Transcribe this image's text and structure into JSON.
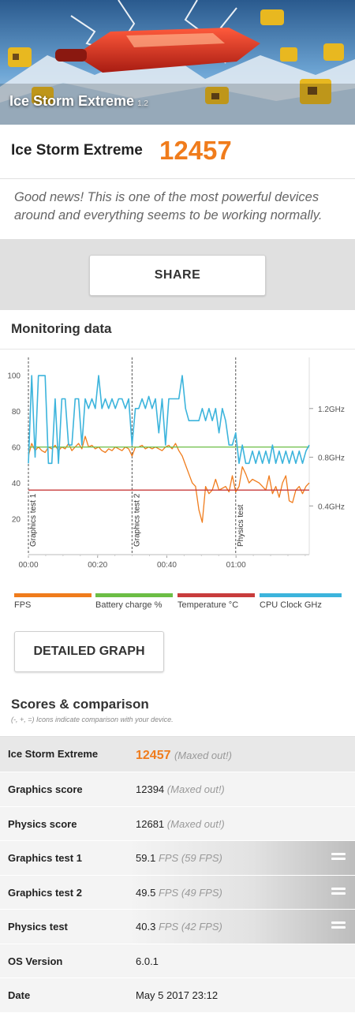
{
  "banner": {
    "title": "Ice Storm Extreme",
    "version": "1.2"
  },
  "score": {
    "name": "Ice Storm Extreme",
    "value": "12457"
  },
  "message": "Good news! This is one of the most powerful devices around and everything seems to be working normally.",
  "share_label": "SHARE",
  "monitoring": {
    "title": "Monitoring data",
    "detailed_label": "DETAILED GRAPH",
    "legend": [
      {
        "label": "FPS",
        "color": "#f07c1c"
      },
      {
        "label": "Battery charge %",
        "color": "#6cbe45"
      },
      {
        "label": "Temperature °C",
        "color": "#c83c3c"
      },
      {
        "label": "CPU Clock GHz",
        "color": "#3cb4dc"
      }
    ]
  },
  "chart_data": {
    "type": "line",
    "x_ticks": [
      "00:00",
      "00:20",
      "00:40",
      "01:00"
    ],
    "x_range": [
      0,
      84
    ],
    "y_left_ticks": [
      20,
      40,
      60,
      80,
      100
    ],
    "y_left_range": [
      0,
      110
    ],
    "y_right_ticks": [
      "0.4GHz",
      "0.8GHz",
      "1.2GHz"
    ],
    "y_right_range": [
      0,
      1.62
    ],
    "section_markers": [
      {
        "label": "Graphics test 1",
        "x": 0
      },
      {
        "label": "Graphics test 2",
        "x": 31
      },
      {
        "label": "Physics test",
        "x": 62
      }
    ],
    "series": [
      {
        "name": "FPS",
        "axis": "left",
        "x": [
          0,
          1,
          2,
          3,
          4,
          5,
          6,
          7,
          8,
          9,
          10,
          11,
          12,
          13,
          14,
          15,
          16,
          17,
          18,
          19,
          20,
          21,
          22,
          23,
          24,
          25,
          26,
          27,
          28,
          29,
          30,
          31,
          32,
          33,
          34,
          35,
          36,
          37,
          38,
          39,
          40,
          41,
          42,
          43,
          44,
          45,
          46,
          47,
          48,
          49,
          50,
          51,
          52,
          53,
          54,
          55,
          56,
          57,
          58,
          59,
          60,
          61,
          62,
          63,
          64,
          65,
          66,
          67,
          68,
          69,
          70,
          71,
          72,
          73,
          74,
          75,
          76,
          77,
          78,
          79,
          80,
          81,
          82,
          83,
          84
        ],
        "y": [
          55,
          62,
          58,
          60,
          58,
          57,
          60,
          59,
          61,
          58,
          60,
          59,
          62,
          58,
          60,
          62,
          59,
          66,
          60,
          61,
          59,
          60,
          58,
          57,
          59,
          58,
          60,
          59,
          58,
          60,
          59,
          55,
          60,
          60,
          61,
          59,
          60,
          59,
          60,
          59,
          58,
          60,
          61,
          59,
          62,
          58,
          55,
          50,
          45,
          40,
          38,
          25,
          18,
          38,
          34,
          36,
          42,
          36,
          37,
          38,
          35,
          44,
          35,
          38,
          49,
          45,
          40,
          42,
          41,
          40,
          38,
          36,
          44,
          34,
          38,
          32,
          40,
          44,
          30,
          29,
          36,
          38,
          34,
          38,
          40
        ],
        "color": "#f07c1c"
      },
      {
        "name": "Battery charge %",
        "axis": "left",
        "x": [
          0,
          84
        ],
        "y": [
          60,
          60
        ],
        "color": "#6cbe45"
      },
      {
        "name": "Temperature °C",
        "axis": "left",
        "x": [
          0,
          84
        ],
        "y": [
          36,
          36
        ],
        "color": "#c83c3c"
      },
      {
        "name": "CPU Clock GHz",
        "axis": "right",
        "x": [
          0,
          1,
          2,
          3,
          4,
          5,
          6,
          7,
          8,
          9,
          10,
          11,
          12,
          13,
          14,
          15,
          16,
          17,
          18,
          19,
          20,
          21,
          22,
          23,
          24,
          25,
          26,
          27,
          28,
          29,
          30,
          31,
          32,
          33,
          34,
          35,
          36,
          37,
          38,
          39,
          40,
          41,
          42,
          43,
          44,
          45,
          46,
          47,
          48,
          49,
          50,
          51,
          52,
          53,
          54,
          55,
          56,
          57,
          58,
          59,
          60,
          61,
          62,
          63,
          64,
          65,
          66,
          67,
          68,
          69,
          70,
          71,
          72,
          73,
          74,
          75,
          76,
          77,
          78,
          79,
          80,
          81,
          82,
          83,
          84
        ],
        "y": [
          0.75,
          1.47,
          0.8,
          1.47,
          1.47,
          1.47,
          0.75,
          0.75,
          1.28,
          0.75,
          1.28,
          1.28,
          0.9,
          0.9,
          1.28,
          1.28,
          0.9,
          1.28,
          1.2,
          1.28,
          1.2,
          1.47,
          1.2,
          1.28,
          1.2,
          1.28,
          1.2,
          1.28,
          1.28,
          1.2,
          1.28,
          0.9,
          1.2,
          1.2,
          1.28,
          1.2,
          1.3,
          1.2,
          1.28,
          1.0,
          1.28,
          0.9,
          1.28,
          1.28,
          1.28,
          1.28,
          1.47,
          1.2,
          1.1,
          1.1,
          1.1,
          1.1,
          1.2,
          1.1,
          1.2,
          1.1,
          1.2,
          1.0,
          1.2,
          1.1,
          0.9,
          0.9,
          1.0,
          0.75,
          0.9,
          0.75,
          0.75,
          0.85,
          0.75,
          0.85,
          0.75,
          0.85,
          0.75,
          0.9,
          0.75,
          0.85,
          0.75,
          0.85,
          0.75,
          0.85,
          0.75,
          0.85,
          0.75,
          0.85,
          0.9
        ],
        "color": "#3cb4dc"
      }
    ]
  },
  "scores": {
    "title": "Scores & comparison",
    "note": "(-, +, =) Icons indicate comparison with your device.",
    "rows": [
      {
        "key": "Ice Storm Extreme",
        "value": "12457",
        "unit": "(Maxed out!)"
      },
      {
        "key": "Graphics score",
        "value": "12394",
        "unit": "(Maxed out!)"
      },
      {
        "key": "Physics score",
        "value": "12681",
        "unit": "(Maxed out!)"
      },
      {
        "key": "Graphics test 1",
        "value": "59.1",
        "unit": "FPS (59 FPS)"
      },
      {
        "key": "Graphics test 2",
        "value": "49.5",
        "unit": "FPS (49 FPS)"
      },
      {
        "key": "Physics test",
        "value": "40.3",
        "unit": "FPS (42 FPS)"
      },
      {
        "key": "OS Version",
        "value": "6.0.1",
        "unit": ""
      },
      {
        "key": "Date",
        "value": "May 5 2017 23:12",
        "unit": ""
      }
    ]
  }
}
